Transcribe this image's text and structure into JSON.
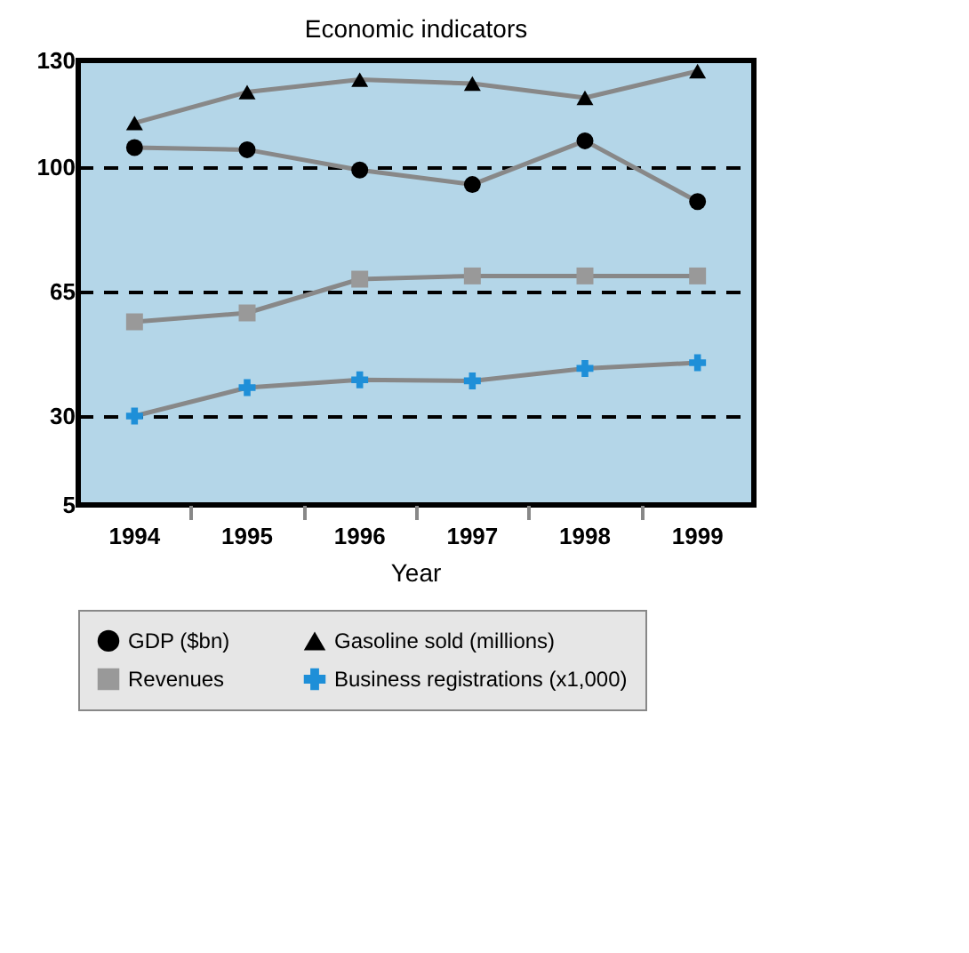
{
  "chart_data": {
    "type": "line",
    "title": "Economic indicators",
    "xlabel": "Year",
    "categories": [
      "1994",
      "1995",
      "1996",
      "1997",
      "1998",
      "1999"
    ],
    "ylim": [
      5,
      130
    ],
    "yticks": [
      5,
      30,
      65,
      100,
      130
    ],
    "grid": "y",
    "line_style": "solid",
    "legend": "bottom",
    "series": [
      {
        "name": "GDP ($bn)",
        "color": "#000000",
        "marker": "circle",
        "values": [
          105.5,
          104.9,
          99.2,
          95.1,
          107.4,
          90.3
        ]
      },
      {
        "name": "Gasoline sold (millions)",
        "color": "#000000",
        "marker": "triangle",
        "values": [
          112.4,
          121.1,
          124.6,
          123.5,
          119.5,
          127
        ]
      },
      {
        "name": "Revenues",
        "color": "#999999",
        "marker": "square",
        "values": [
          56.5,
          59,
          68.5,
          69.4,
          69.4,
          69.4
        ]
      },
      {
        "name": "Business registrations (x1,000)",
        "color": "#1e8fd8",
        "marker": "cross",
        "values": [
          30,
          38,
          40.2,
          39.9,
          43.4,
          45
        ]
      }
    ]
  }
}
